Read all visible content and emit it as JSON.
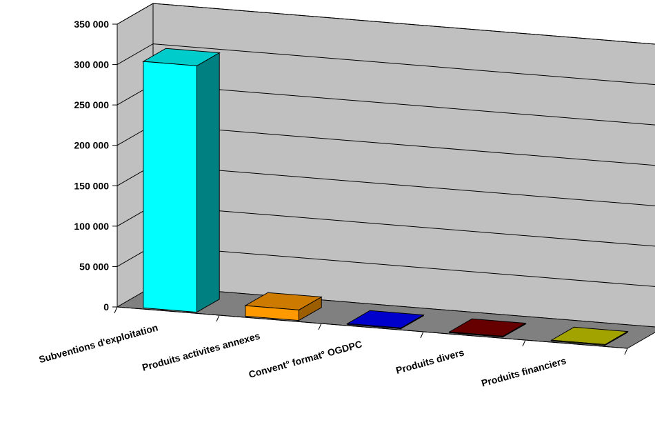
{
  "chart_data": {
    "type": "bar",
    "title": "",
    "xlabel": "",
    "ylabel": "",
    "categories": [
      "Subventions d'exploitation",
      "Produits activites annexes",
      "Convent° format° OGDPC",
      "Produits divers",
      "Produits financiers"
    ],
    "values": [
      305000,
      13000,
      1000,
      1000,
      1000
    ],
    "ylim": [
      0,
      350000
    ],
    "yticks": [
      "0",
      "50 000",
      "100 000",
      "150 000",
      "200 000",
      "250 000",
      "300 000",
      "350 000"
    ],
    "grid": true,
    "legend": "none",
    "colors": {
      "bar_fronts": [
        "#00FFFF",
        "#FF9900",
        "#0000FF",
        "#800000",
        "#CCCC00"
      ],
      "bar_sides": [
        "#008080",
        "#9C5E00",
        "#00009C",
        "#4E0000",
        "#7C7C00"
      ],
      "bar_tops": [
        "#00CCCC",
        "#CC7A00",
        "#0000CC",
        "#660000",
        "#A3A300"
      ],
      "back_wall": "#C0C0C0",
      "side_wall": "#C0C0C0",
      "floor": "#808080",
      "gridline": "#000000"
    }
  }
}
